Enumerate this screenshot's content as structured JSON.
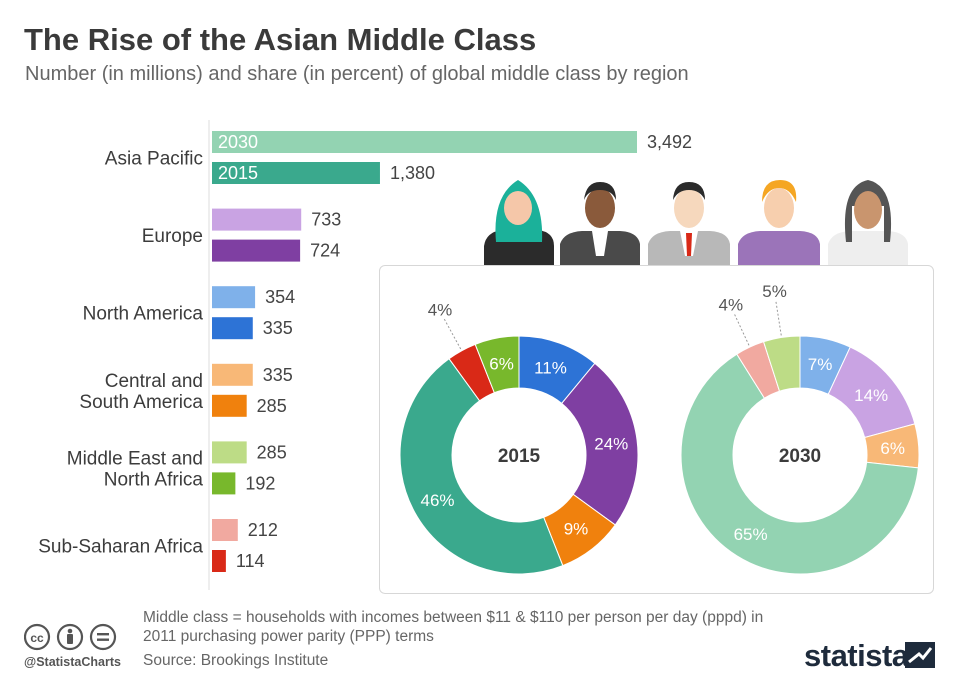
{
  "header": {
    "title": "The Rise of the Asian Middle Class",
    "subtitle": "Number (in millions) and share (in percent) of global middle class by region"
  },
  "chart_data": [
    {
      "type": "bar",
      "orientation": "horizontal",
      "title": "The Rise of the Asian Middle Class",
      "unit": "millions",
      "categories": [
        {
          "label": [
            "Asia Pacific"
          ],
          "color_2030": "#93d3b2",
          "color_2015": "#3aa98d"
        },
        {
          "label": [
            "Europe"
          ],
          "color_2030": "#c9a3e3",
          "color_2015": "#7f3fa2"
        },
        {
          "label": [
            "North America"
          ],
          "color_2030": "#7fb1ea",
          "color_2015": "#2d73d6"
        },
        {
          "label": [
            "Central and",
            "South America"
          ],
          "color_2030": "#f8b877",
          "color_2015": "#f0810d"
        },
        {
          "label": [
            "Middle East and",
            "North Africa"
          ],
          "color_2030": "#bddc86",
          "color_2015": "#78b82c"
        },
        {
          "label": [
            "Sub-Saharan Africa"
          ],
          "color_2030": "#f1a9a0",
          "color_2015": "#d92917"
        }
      ],
      "series": [
        {
          "name": "2030",
          "values": [
            3492,
            733,
            354,
            335,
            285,
            212
          ],
          "value_labels": [
            "3,492",
            "733",
            "354",
            "335",
            "285",
            "212"
          ]
        },
        {
          "name": "2015",
          "values": [
            1380,
            724,
            335,
            285,
            192,
            114
          ],
          "value_labels": [
            "1,380",
            "724",
            "335",
            "285",
            "192",
            "114"
          ]
        }
      ],
      "xlim": [
        0,
        3492
      ]
    },
    {
      "type": "pie",
      "style": "donut",
      "title": "2015",
      "slices": [
        {
          "label": "North America",
          "value": 11,
          "color": "#2d73d6",
          "text": "11%"
        },
        {
          "label": "Europe",
          "value": 24,
          "color": "#7f3fa2",
          "text": "24%"
        },
        {
          "label": "Central and South America",
          "value": 9,
          "color": "#f0810d",
          "text": "9%"
        },
        {
          "label": "Asia Pacific",
          "value": 46,
          "color": "#3aa98d",
          "text": "46%"
        },
        {
          "label": "Sub-Saharan Africa",
          "value": 4,
          "color": "#d92917",
          "text": "4%"
        },
        {
          "label": "Middle East and North Africa",
          "value": 6,
          "color": "#78b82c",
          "text": "6%"
        }
      ]
    },
    {
      "type": "pie",
      "style": "donut",
      "title": "2030",
      "slices": [
        {
          "label": "North America",
          "value": 7,
          "color": "#7fb1ea",
          "text": "7%"
        },
        {
          "label": "Europe",
          "value": 14,
          "color": "#c9a3e3",
          "text": "14%"
        },
        {
          "label": "Central and South America",
          "value": 6,
          "color": "#f8b877",
          "text": "6%"
        },
        {
          "label": "Asia Pacific",
          "value": 65,
          "color": "#93d3b2",
          "text": "65%"
        },
        {
          "label": "Sub-Saharan Africa",
          "value": 4,
          "color": "#f1a9a0",
          "text": "4%"
        },
        {
          "label": "Middle East and North Africa",
          "value": 5,
          "color": "#bddc86",
          "text": "5%"
        }
      ]
    }
  ],
  "footer": {
    "note": "Middle class = households with incomes between $11 & $110 per person per day (pppd) in 2011 purchasing power parity (PPP) terms",
    "source": "Source: Brookings Institute",
    "handle": "@StatistaCharts",
    "logo": "statista",
    "icons": [
      "creative-commons-icon",
      "attribution-icon",
      "no-derivatives-icon"
    ]
  }
}
